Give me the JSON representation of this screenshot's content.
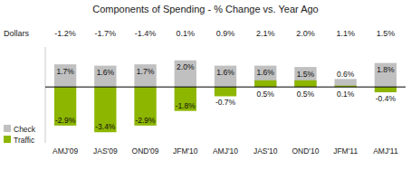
{
  "chart_data": {
    "type": "bar",
    "title": "Components of Spending - %  Change vs. Year Ago",
    "categories": [
      "AMJ'09",
      "JAS'09",
      "OND'09",
      "JFM'10",
      "AMJ'10",
      "JAS'10",
      "OND'10",
      "JFM'11",
      "AMJ'11"
    ],
    "series": [
      {
        "name": "Check",
        "color": "#c0c0c0",
        "values": [
          1.7,
          1.6,
          1.7,
          2.0,
          1.6,
          1.6,
          1.5,
          0.6,
          1.8
        ],
        "value_labels": [
          "1.7%",
          "1.6%",
          "1.7%",
          "2.0%",
          "1.6%",
          "1.6%",
          "1.5%",
          "0.6%",
          "1.8%"
        ]
      },
      {
        "name": "Traffic",
        "color": "#8db600",
        "values": [
          -2.9,
          -3.4,
          -2.9,
          -1.8,
          -0.7,
          0.5,
          0.5,
          0.1,
          -0.4
        ],
        "value_labels": [
          "-2.9%",
          "-3.4%",
          "-2.9%",
          "-1.8%",
          "-0.7%",
          "0.5%",
          "0.5%",
          "0.1%",
          "-0.4%"
        ]
      },
      {
        "name": "Dollars",
        "type": "text",
        "values": [
          -1.2,
          -1.7,
          -1.4,
          0.1,
          0.9,
          2.1,
          2.0,
          1.1,
          1.5
        ],
        "value_labels": [
          "-1.2%",
          "-1.7%",
          "-1.4%",
          "0.1%",
          "0.9%",
          "2.1%",
          "2.0%",
          "1.1%",
          "1.5%"
        ]
      }
    ],
    "ylim": [
      -4.2,
      3.0
    ],
    "stacked": false,
    "data_labels": true,
    "tick_labels": "x",
    "grid": false,
    "legend": "lower left"
  }
}
